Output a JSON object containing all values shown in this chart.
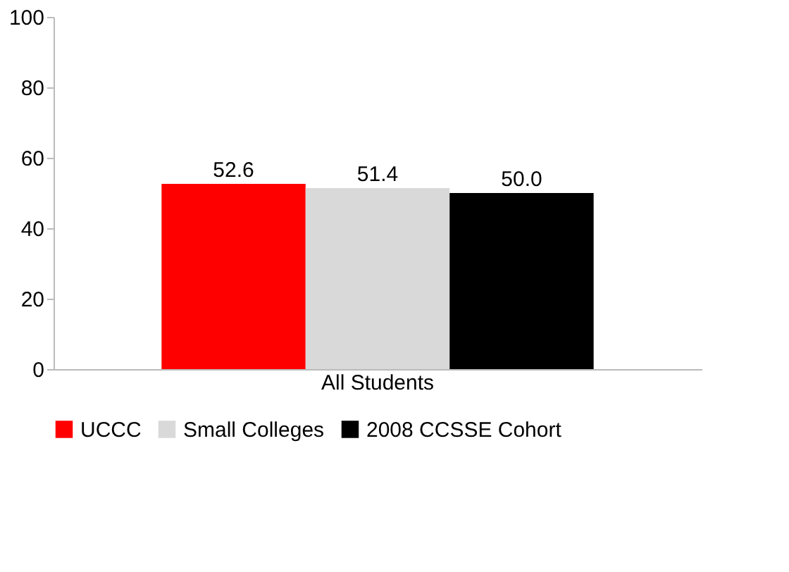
{
  "chart_data": {
    "type": "bar",
    "categories": [
      "All Students"
    ],
    "series": [
      {
        "name": "UCCC",
        "color": "#ff0000",
        "values": [
          52.6
        ],
        "value_labels": [
          "52.6"
        ]
      },
      {
        "name": "Small Colleges",
        "color": "#d9d9d9",
        "values": [
          51.4
        ],
        "value_labels": [
          "51.4"
        ]
      },
      {
        "name": "2008 CCSSE Cohort",
        "color": "#000000",
        "values": [
          50.0
        ],
        "value_labels": [
          "50.0"
        ]
      }
    ],
    "ylim": [
      0,
      100
    ],
    "yticks": [
      0,
      20,
      40,
      60,
      80,
      100
    ],
    "grid": false,
    "legend": "bottom"
  }
}
